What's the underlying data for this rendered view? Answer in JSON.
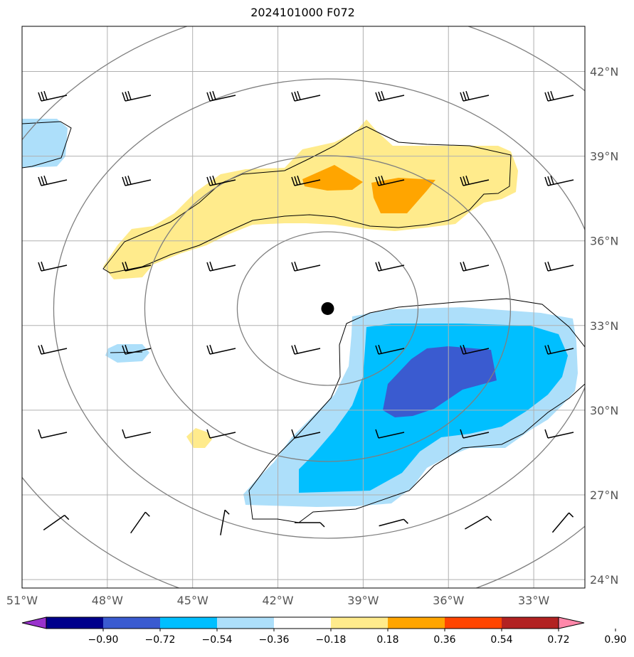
{
  "title": "2024101000 F072",
  "map": {
    "lon_ticks": [
      {
        "label": "51°W",
        "lon": -51
      },
      {
        "label": "48°W",
        "lon": -48
      },
      {
        "label": "45°W",
        "lon": -45
      },
      {
        "label": "42°W",
        "lon": -42
      },
      {
        "label": "39°W",
        "lon": -39
      },
      {
        "label": "36°W",
        "lon": -36
      },
      {
        "label": "33°W",
        "lon": -33
      }
    ],
    "lat_ticks": [
      {
        "label": "42°N",
        "lat": 42
      },
      {
        "label": "39°N",
        "lat": 39
      },
      {
        "label": "36°N",
        "lat": 36
      },
      {
        "label": "33°N",
        "lat": 33
      },
      {
        "label": "30°N",
        "lat": 30
      },
      {
        "label": "27°N",
        "lat": 27
      },
      {
        "label": "24°N",
        "lat": 24
      }
    ],
    "extent": {
      "lon_min": -51,
      "lon_max": -31.2,
      "lat_min": 23.7,
      "lat_max": 43.6
    },
    "center_marker": {
      "lon": -40.25,
      "lat": 33.6
    },
    "gridlines": true,
    "colors": {
      "neg_090": "#9932CC",
      "neg_072": "#00008B",
      "neg_054": "#3A5BD0",
      "neg_036": "#00BFFF",
      "neg_018": "#ADDFFA",
      "zero": "#FFFFFF",
      "pos_018": "#FFEB8C",
      "pos_036": "#FFA500",
      "pos_054": "#FF4500",
      "pos_072": "#B22222",
      "pos_090": "#FF88AA"
    }
  },
  "colorbar": {
    "labels": [
      "−0.90",
      "−0.72",
      "−0.54",
      "−0.36",
      "−0.18",
      "0.18",
      "0.36",
      "0.54",
      "0.72",
      "0.90"
    ],
    "colors": [
      "#9932CC",
      "#00008B",
      "#3A5BD0",
      "#00BFFF",
      "#ADDFFA",
      "#FFFFFF",
      "#FFEB8C",
      "#FFA500",
      "#FF4500",
      "#B22222",
      "#FF88AA"
    ],
    "extend": "both"
  }
}
